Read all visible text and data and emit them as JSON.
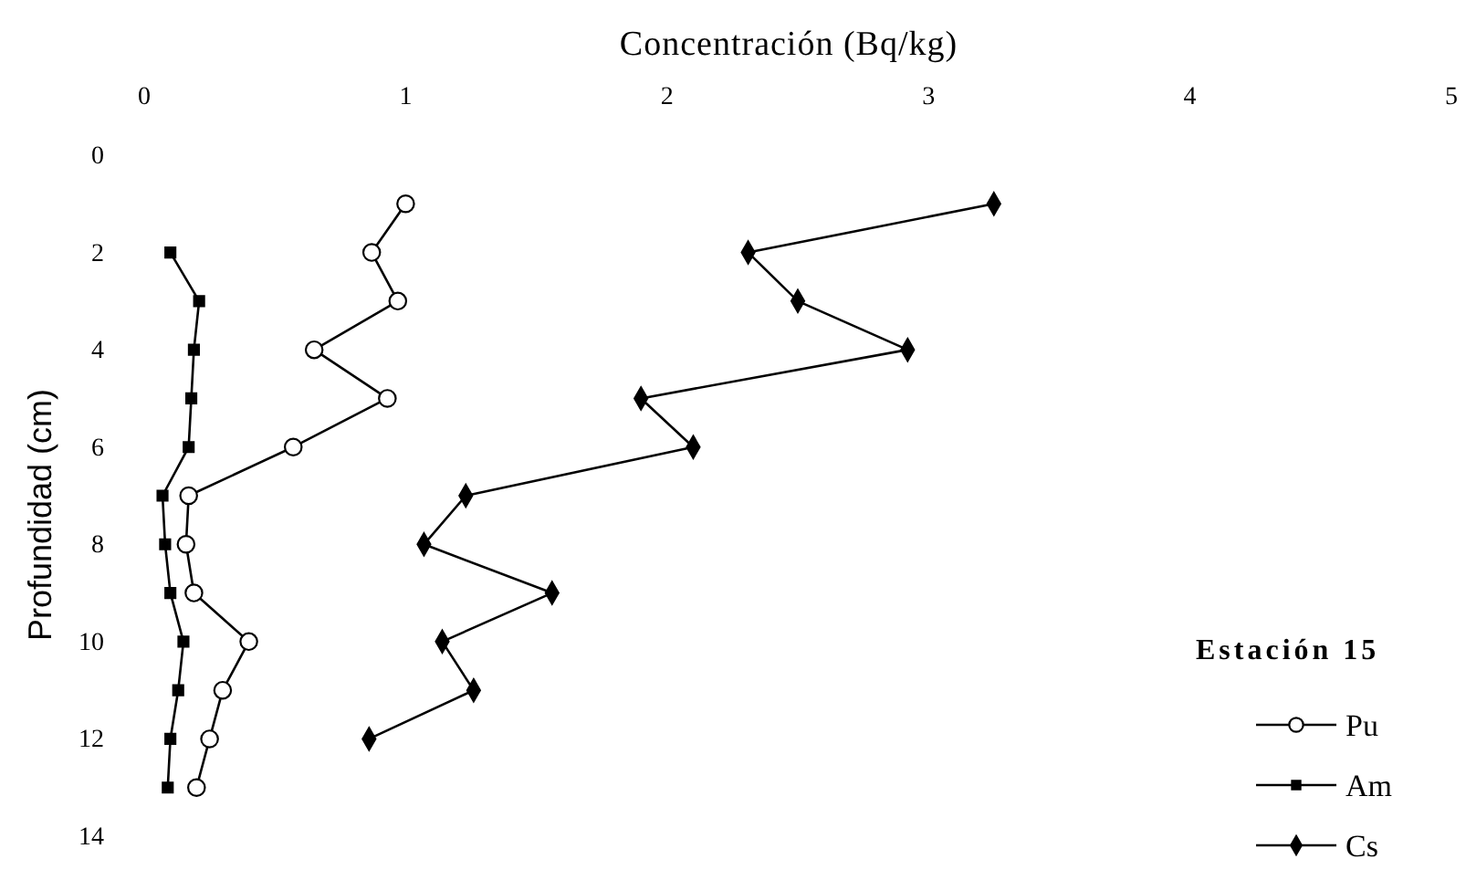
{
  "chart_data": {
    "type": "line",
    "xlabel": "Concentración (Bq/kg)",
    "ylabel": "Profundidad (cm)",
    "legend_title": "Estación 15",
    "legend": "bottom right",
    "xlim": [
      0,
      5
    ],
    "xticks": [
      0,
      1,
      2,
      3,
      4,
      5
    ],
    "ylim": [
      14,
      0
    ],
    "yticks": [
      0,
      2,
      4,
      6,
      8,
      10,
      12,
      14
    ],
    "series": [
      {
        "name": "Pu",
        "color": "#000000",
        "marker": "circle",
        "x": [
          1.0,
          0.87,
          0.97,
          0.65,
          0.93,
          0.57,
          0.17,
          0.16,
          0.19,
          0.4,
          0.3,
          0.25,
          0.2
        ],
        "values": [
          1,
          2,
          3,
          4,
          5,
          6,
          7,
          8,
          9,
          10,
          11,
          12,
          13
        ]
      },
      {
        "name": "Am",
        "color": "#000000",
        "marker": "square",
        "x": [
          0.1,
          0.21,
          0.19,
          0.18,
          0.17,
          0.07,
          0.08,
          0.1,
          0.15,
          0.13,
          0.1,
          0.09
        ],
        "values": [
          2,
          3,
          4,
          5,
          6,
          7,
          8,
          9,
          10,
          11,
          12,
          13
        ]
      },
      {
        "name": "Cs",
        "color": "#000000",
        "marker": "diamond",
        "x": [
          3.25,
          2.31,
          2.5,
          2.92,
          1.9,
          2.1,
          1.23,
          1.07,
          1.56,
          1.14,
          1.26,
          0.86
        ],
        "values": [
          1,
          2,
          3,
          4,
          5,
          6,
          7,
          8,
          9,
          10,
          11,
          12
        ]
      }
    ]
  }
}
